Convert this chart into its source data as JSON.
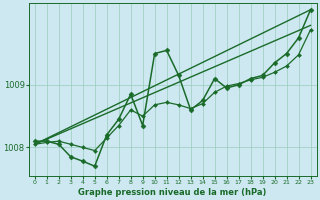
{
  "background_color": "#cde8f0",
  "plot_bg_color": "#cde8f0",
  "grid_color": "#99ccbb",
  "line_color": "#1a6b2a",
  "xlabel": "Graphe pression niveau de la mer (hPa)",
  "xlim": [
    -0.5,
    23.5
  ],
  "ylim": [
    1007.55,
    1010.3
  ],
  "yticks": [
    1008,
    1009
  ],
  "xticks": [
    0,
    1,
    2,
    3,
    4,
    5,
    6,
    7,
    8,
    9,
    10,
    11,
    12,
    13,
    14,
    15,
    16,
    17,
    18,
    19,
    20,
    21,
    22,
    23
  ],
  "series": [
    {
      "x": [
        0,
        1,
        2,
        3,
        4,
        5,
        6,
        7,
        8,
        9,
        10,
        11,
        12,
        13,
        14,
        15,
        16,
        17,
        18,
        19,
        20,
        21,
        22,
        23
      ],
      "y": [
        1008.1,
        1008.1,
        1008.05,
        1007.85,
        1007.78,
        1007.7,
        1008.2,
        1008.45,
        1008.85,
        1008.35,
        1009.5,
        1009.55,
        1009.15,
        1008.6,
        1008.75,
        1009.1,
        1008.95,
        1009.0,
        1009.1,
        1009.15,
        1009.35,
        1009.5,
        1009.75,
        1010.2
      ],
      "marker": "D",
      "markersize": 2.5,
      "linewidth": 1.1
    },
    {
      "x": [
        0,
        23
      ],
      "y": [
        1008.05,
        1010.2
      ],
      "marker": null,
      "markersize": 0,
      "linewidth": 1.0
    },
    {
      "x": [
        0,
        23
      ],
      "y": [
        1008.05,
        1009.95
      ],
      "marker": null,
      "markersize": 0,
      "linewidth": 1.0
    },
    {
      "x": [
        0,
        1,
        2,
        3,
        4,
        5,
        6,
        7,
        8,
        9,
        10,
        11,
        12,
        13,
        14,
        15,
        16,
        17,
        18,
        19,
        20,
        21,
        22,
        23
      ],
      "y": [
        1008.05,
        1008.08,
        1008.1,
        1008.05,
        1008.0,
        1007.95,
        1008.15,
        1008.35,
        1008.6,
        1008.5,
        1008.68,
        1008.72,
        1008.68,
        1008.62,
        1008.7,
        1008.88,
        1008.98,
        1009.02,
        1009.08,
        1009.12,
        1009.2,
        1009.3,
        1009.48,
        1009.88
      ],
      "marker": "D",
      "markersize": 2.0,
      "linewidth": 0.9
    }
  ]
}
